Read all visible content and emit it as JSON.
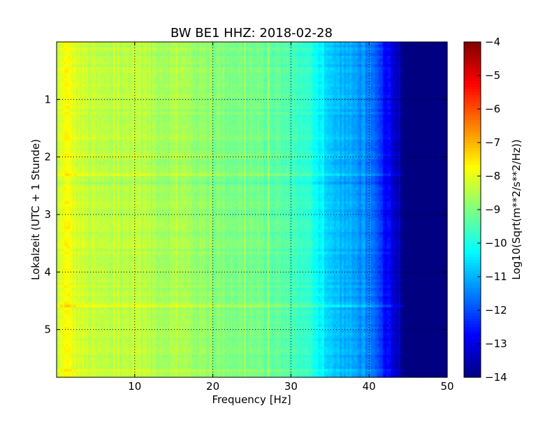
{
  "chart_data": {
    "type": "heatmap",
    "title": "BW BE1 HHZ: 2018-02-28",
    "xlabel": "Frequency [Hz]",
    "ylabel": "Lokalzeit (UTC + 1 Stunde)",
    "colorbar_label": "Log10(Sqrt(m**2/s**2/Hz))",
    "xlim": [
      0,
      50
    ],
    "ylim": [
      5.83,
      0
    ],
    "y_inverted": true,
    "x_ticks": [
      10,
      20,
      30,
      40,
      50
    ],
    "x_tick_labels": [
      "10",
      "20",
      "30",
      "40",
      "50"
    ],
    "y_ticks": [
      1,
      2,
      3,
      4,
      5
    ],
    "y_tick_labels": [
      "1",
      "2",
      "3",
      "4",
      "5"
    ],
    "colorbar_range": [
      -14,
      -4
    ],
    "colorbar_ticks": [
      -4,
      -5,
      -6,
      -7,
      -8,
      -9,
      -10,
      -11,
      -12,
      -13,
      -14
    ],
    "colorbar_tick_labels": [
      "−4",
      "−5",
      "−6",
      "−7",
      "−8",
      "−9",
      "−10",
      "−11",
      "−12",
      "−13",
      "−14"
    ],
    "colormap": "jet",
    "grid": true,
    "grid_style": "dotted",
    "frequency_profile": {
      "frequency_hz": [
        0,
        0.5,
        1,
        1.5,
        2,
        3,
        5,
        8,
        10,
        12,
        14,
        16,
        20,
        25,
        28,
        30,
        32,
        33,
        34,
        35,
        37,
        39,
        40,
        41,
        42,
        43,
        44,
        45,
        50
      ],
      "log10_amplitude": [
        -8.5,
        -8.1,
        -7.8,
        -7.8,
        -8.0,
        -8.2,
        -8.4,
        -8.5,
        -8.3,
        -8.5,
        -8.6,
        -8.6,
        -8.9,
        -9.1,
        -9.3,
        -9.5,
        -9.8,
        -10.0,
        -10.4,
        -10.8,
        -11.0,
        -11.3,
        -11.6,
        -12.0,
        -12.6,
        -13.2,
        -13.7,
        -14.0,
        -14.0
      ]
    }
  }
}
